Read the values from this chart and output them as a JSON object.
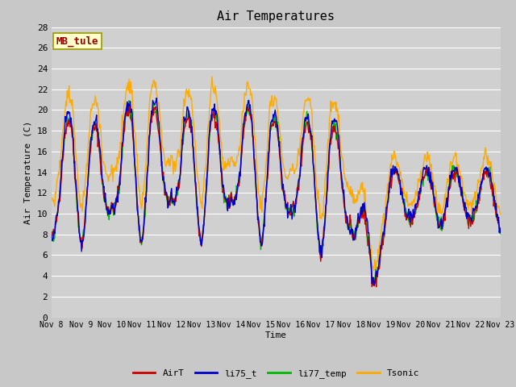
{
  "title": "Air Temperatures",
  "ylabel": "Air Temperature (C)",
  "xlabel": "Time",
  "annotation": "MB_tule",
  "ylim": [
    0,
    28
  ],
  "series_colors": {
    "AirT": "#cc0000",
    "li75_t": "#0000cc",
    "li77_temp": "#00bb00",
    "Tsonic": "#ffaa00"
  },
  "x_tick_labels": [
    "Nov 8",
    "Nov 9",
    "Nov 10",
    "Nov 11",
    "Nov 12",
    "Nov 13",
    "Nov 14",
    "Nov 15",
    "Nov 16",
    "Nov 17",
    "Nov 18",
    "Nov 19",
    "Nov 20",
    "Nov 21",
    "Nov 22",
    "Nov 23"
  ],
  "fig_bg": "#c8c8c8",
  "plot_bg": "#d0d0d0",
  "grid_color": "#ffffff",
  "linewidth": 1.0
}
